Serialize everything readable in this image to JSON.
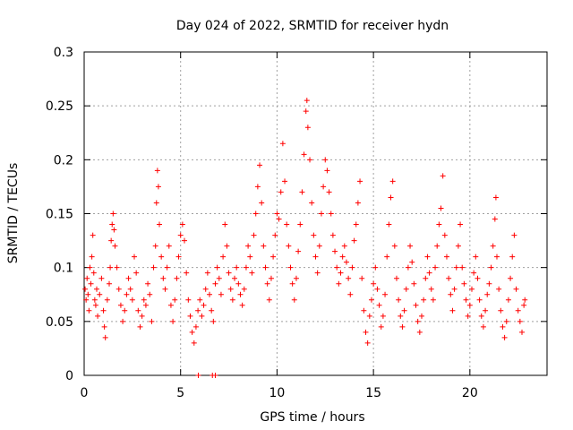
{
  "chart_data": {
    "type": "scatter",
    "title": "Day 024 of 2022, SRMTID for receiver hydn",
    "xlabel": "GPS time / hours",
    "ylabel": "SRMTID / TECUs",
    "xlim": [
      0,
      24
    ],
    "ylim": [
      0,
      0.3
    ],
    "xticks": [
      0,
      5,
      10,
      15,
      20
    ],
    "xtick_labels": [
      "0",
      "5",
      "10",
      "15",
      "20"
    ],
    "yticks": [
      0,
      0.05,
      0.1,
      0.15,
      0.2,
      0.25,
      0.3
    ],
    "ytick_labels": [
      "0",
      "0.05",
      "0.1",
      "0.15",
      "0.2",
      "0.25",
      "0.3"
    ],
    "grid": true,
    "series_color": "#ff0000",
    "marker": "plus",
    "series": [
      {
        "name": "SRMTID",
        "points": [
          [
            0.05,
            0.08
          ],
          [
            0.1,
            0.07
          ],
          [
            0.15,
            0.09
          ],
          [
            0.2,
            0.075
          ],
          [
            0.25,
            0.06
          ],
          [
            0.3,
            0.1
          ],
          [
            0.35,
            0.085
          ],
          [
            0.4,
            0.11
          ],
          [
            0.45,
            0.13
          ],
          [
            0.5,
            0.095
          ],
          [
            0.55,
            0.07
          ],
          [
            0.6,
            0.065
          ],
          [
            0.65,
            0.08
          ],
          [
            0.7,
            0.055
          ],
          [
            0.8,
            0.075
          ],
          [
            0.9,
            0.09
          ],
          [
            1.0,
            0.06
          ],
          [
            1.05,
            0.045
          ],
          [
            1.1,
            0.035
          ],
          [
            1.2,
            0.07
          ],
          [
            1.3,
            0.085
          ],
          [
            1.35,
            0.1
          ],
          [
            1.4,
            0.125
          ],
          [
            1.45,
            0.14
          ],
          [
            1.5,
            0.15
          ],
          [
            1.55,
            0.135
          ],
          [
            1.6,
            0.12
          ],
          [
            1.7,
            0.1
          ],
          [
            1.8,
            0.08
          ],
          [
            1.9,
            0.065
          ],
          [
            2.0,
            0.05
          ],
          [
            2.1,
            0.06
          ],
          [
            2.2,
            0.075
          ],
          [
            2.3,
            0.09
          ],
          [
            2.4,
            0.08
          ],
          [
            2.5,
            0.07
          ],
          [
            2.6,
            0.11
          ],
          [
            2.7,
            0.095
          ],
          [
            2.8,
            0.06
          ],
          [
            2.9,
            0.045
          ],
          [
            3.0,
            0.055
          ],
          [
            3.1,
            0.07
          ],
          [
            3.2,
            0.065
          ],
          [
            3.3,
            0.085
          ],
          [
            3.4,
            0.075
          ],
          [
            3.5,
            0.05
          ],
          [
            3.6,
            0.1
          ],
          [
            3.7,
            0.12
          ],
          [
            3.75,
            0.16
          ],
          [
            3.8,
            0.19
          ],
          [
            3.85,
            0.175
          ],
          [
            3.9,
            0.14
          ],
          [
            4.0,
            0.11
          ],
          [
            4.1,
            0.09
          ],
          [
            4.2,
            0.08
          ],
          [
            4.3,
            0.1
          ],
          [
            4.4,
            0.12
          ],
          [
            4.5,
            0.065
          ],
          [
            4.6,
            0.05
          ],
          [
            4.7,
            0.07
          ],
          [
            4.8,
            0.09
          ],
          [
            4.9,
            0.11
          ],
          [
            5.0,
            0.13
          ],
          [
            5.1,
            0.14
          ],
          [
            5.2,
            0.125
          ],
          [
            5.3,
            0.095
          ],
          [
            5.4,
            0.07
          ],
          [
            5.5,
            0.055
          ],
          [
            5.6,
            0.04
          ],
          [
            5.7,
            0.03
          ],
          [
            5.8,
            0.045
          ],
          [
            5.9,
            0.06
          ],
          [
            6.0,
            0.07
          ],
          [
            6.1,
            0.055
          ],
          [
            6.2,
            0.065
          ],
          [
            6.3,
            0.08
          ],
          [
            6.4,
            0.095
          ],
          [
            6.5,
            0.075
          ],
          [
            6.6,
            0.06
          ],
          [
            6.7,
            0.05
          ],
          [
            6.8,
            0.085
          ],
          [
            6.9,
            0.1
          ],
          [
            7.0,
            0.09
          ],
          [
            7.1,
            0.075
          ],
          [
            7.2,
            0.11
          ],
          [
            7.3,
            0.14
          ],
          [
            7.4,
            0.12
          ],
          [
            7.5,
            0.095
          ],
          [
            7.6,
            0.08
          ],
          [
            7.7,
            0.07
          ],
          [
            7.8,
            0.09
          ],
          [
            7.9,
            0.1
          ],
          [
            8.0,
            0.085
          ],
          [
            8.1,
            0.075
          ],
          [
            8.2,
            0.065
          ],
          [
            8.3,
            0.08
          ],
          [
            8.4,
            0.1
          ],
          [
            8.5,
            0.12
          ],
          [
            8.6,
            0.11
          ],
          [
            8.7,
            0.095
          ],
          [
            8.8,
            0.13
          ],
          [
            8.9,
            0.15
          ],
          [
            9.0,
            0.175
          ],
          [
            9.1,
            0.195
          ],
          [
            9.2,
            0.16
          ],
          [
            9.3,
            0.12
          ],
          [
            9.4,
            0.1
          ],
          [
            9.5,
            0.085
          ],
          [
            9.6,
            0.07
          ],
          [
            9.7,
            0.09
          ],
          [
            9.8,
            0.11
          ],
          [
            9.9,
            0.13
          ],
          [
            10.0,
            0.15
          ],
          [
            10.1,
            0.145
          ],
          [
            10.2,
            0.17
          ],
          [
            10.3,
            0.215
          ],
          [
            10.4,
            0.18
          ],
          [
            10.5,
            0.14
          ],
          [
            10.6,
            0.12
          ],
          [
            10.7,
            0.1
          ],
          [
            10.8,
            0.085
          ],
          [
            10.9,
            0.07
          ],
          [
            11.0,
            0.09
          ],
          [
            11.1,
            0.115
          ],
          [
            11.2,
            0.14
          ],
          [
            11.3,
            0.17
          ],
          [
            11.4,
            0.205
          ],
          [
            11.5,
            0.245
          ],
          [
            11.55,
            0.255
          ],
          [
            11.6,
            0.23
          ],
          [
            11.7,
            0.2
          ],
          [
            11.8,
            0.16
          ],
          [
            11.9,
            0.13
          ],
          [
            12.0,
            0.11
          ],
          [
            12.1,
            0.095
          ],
          [
            12.2,
            0.12
          ],
          [
            12.3,
            0.15
          ],
          [
            12.4,
            0.175
          ],
          [
            12.5,
            0.2
          ],
          [
            12.6,
            0.19
          ],
          [
            12.7,
            0.17
          ],
          [
            12.8,
            0.15
          ],
          [
            12.9,
            0.13
          ],
          [
            13.0,
            0.115
          ],
          [
            13.1,
            0.1
          ],
          [
            13.2,
            0.085
          ],
          [
            13.3,
            0.095
          ],
          [
            13.4,
            0.11
          ],
          [
            13.5,
            0.12
          ],
          [
            13.6,
            0.105
          ],
          [
            13.7,
            0.09
          ],
          [
            13.8,
            0.075
          ],
          [
            13.9,
            0.1
          ],
          [
            14.0,
            0.125
          ],
          [
            14.1,
            0.14
          ],
          [
            14.2,
            0.16
          ],
          [
            14.3,
            0.18
          ],
          [
            14.4,
            0.09
          ],
          [
            14.5,
            0.06
          ],
          [
            14.6,
            0.04
          ],
          [
            14.7,
            0.03
          ],
          [
            14.8,
            0.055
          ],
          [
            14.9,
            0.07
          ],
          [
            15.0,
            0.085
          ],
          [
            15.1,
            0.1
          ],
          [
            15.2,
            0.08
          ],
          [
            15.3,
            0.065
          ],
          [
            15.4,
            0.045
          ],
          [
            15.5,
            0.055
          ],
          [
            15.6,
            0.075
          ],
          [
            15.7,
            0.11
          ],
          [
            15.8,
            0.14
          ],
          [
            15.9,
            0.165
          ],
          [
            16.0,
            0.18
          ],
          [
            16.1,
            0.12
          ],
          [
            16.2,
            0.09
          ],
          [
            16.3,
            0.07
          ],
          [
            16.4,
            0.055
          ],
          [
            16.5,
            0.045
          ],
          [
            16.6,
            0.06
          ],
          [
            16.7,
            0.08
          ],
          [
            16.8,
            0.1
          ],
          [
            16.9,
            0.12
          ],
          [
            17.0,
            0.105
          ],
          [
            17.1,
            0.085
          ],
          [
            17.2,
            0.065
          ],
          [
            17.3,
            0.05
          ],
          [
            17.4,
            0.04
          ],
          [
            17.5,
            0.055
          ],
          [
            17.6,
            0.07
          ],
          [
            17.7,
            0.09
          ],
          [
            17.8,
            0.11
          ],
          [
            17.9,
            0.095
          ],
          [
            18.0,
            0.08
          ],
          [
            18.1,
            0.07
          ],
          [
            18.2,
            0.1
          ],
          [
            18.3,
            0.12
          ],
          [
            18.4,
            0.14
          ],
          [
            18.5,
            0.155
          ],
          [
            18.6,
            0.185
          ],
          [
            18.7,
            0.13
          ],
          [
            18.8,
            0.11
          ],
          [
            18.9,
            0.09
          ],
          [
            19.0,
            0.075
          ],
          [
            19.1,
            0.06
          ],
          [
            19.2,
            0.08
          ],
          [
            19.3,
            0.1
          ],
          [
            19.4,
            0.12
          ],
          [
            19.5,
            0.14
          ],
          [
            19.6,
            0.1
          ],
          [
            19.7,
            0.085
          ],
          [
            19.8,
            0.07
          ],
          [
            19.9,
            0.055
          ],
          [
            20.0,
            0.065
          ],
          [
            20.1,
            0.08
          ],
          [
            20.2,
            0.095
          ],
          [
            20.3,
            0.11
          ],
          [
            20.4,
            0.09
          ],
          [
            20.5,
            0.07
          ],
          [
            20.6,
            0.055
          ],
          [
            20.7,
            0.045
          ],
          [
            20.8,
            0.06
          ],
          [
            20.9,
            0.075
          ],
          [
            21.0,
            0.085
          ],
          [
            21.1,
            0.1
          ],
          [
            21.2,
            0.12
          ],
          [
            21.3,
            0.145
          ],
          [
            21.35,
            0.165
          ],
          [
            21.4,
            0.11
          ],
          [
            21.5,
            0.08
          ],
          [
            21.6,
            0.06
          ],
          [
            21.7,
            0.045
          ],
          [
            21.8,
            0.035
          ],
          [
            21.9,
            0.05
          ],
          [
            22.0,
            0.07
          ],
          [
            22.1,
            0.09
          ],
          [
            22.2,
            0.11
          ],
          [
            22.3,
            0.13
          ],
          [
            22.4,
            0.08
          ],
          [
            22.5,
            0.06
          ],
          [
            22.6,
            0.05
          ],
          [
            22.7,
            0.04
          ],
          [
            22.8,
            0.065
          ],
          [
            22.85,
            0.07
          ],
          [
            5.92,
            0.0
          ],
          [
            6.65,
            0.0
          ],
          [
            6.8,
            0.0
          ]
        ]
      }
    ]
  }
}
